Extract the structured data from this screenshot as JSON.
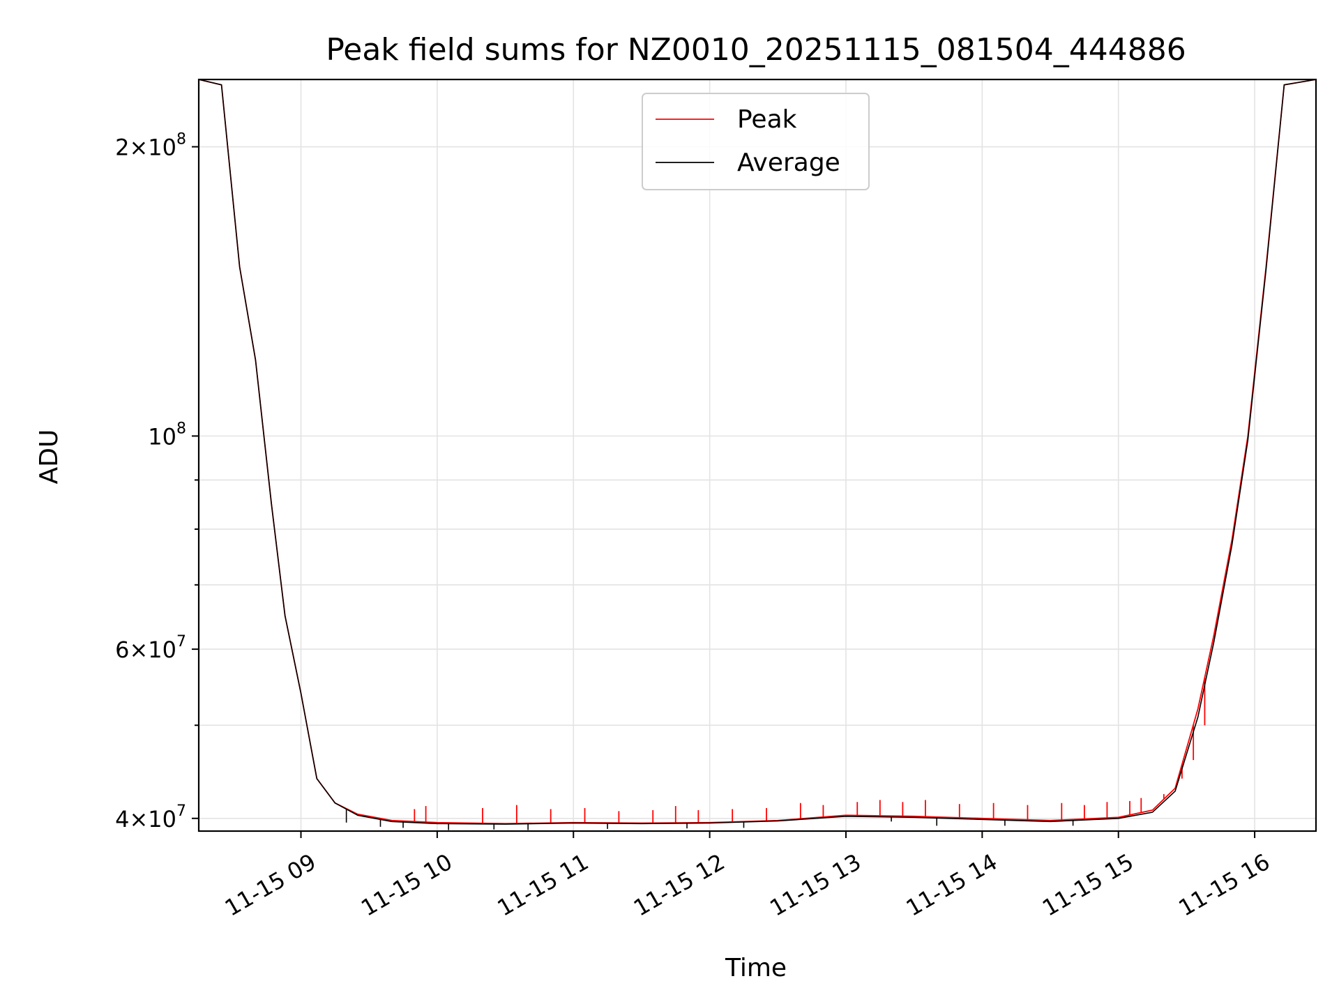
{
  "chart_data": {
    "type": "line",
    "title": "Peak field sums for NZ0010_20251115_081504_444886",
    "xlabel": "Time",
    "ylabel": "ADU",
    "yscale": "log",
    "grid": true,
    "legend_position": "upper center",
    "xlim": [
      "2025-11-15 08:15",
      "2025-11-15 16:27"
    ],
    "ylim": [
      38800000,
      235000000
    ],
    "x_ticks": [
      {
        "value": "2025-11-15 09:00",
        "label": "11-15 09"
      },
      {
        "value": "2025-11-15 10:00",
        "label": "11-15 10"
      },
      {
        "value": "2025-11-15 11:00",
        "label": "11-15 11"
      },
      {
        "value": "2025-11-15 12:00",
        "label": "11-15 12"
      },
      {
        "value": "2025-11-15 13:00",
        "label": "11-15 13"
      },
      {
        "value": "2025-11-15 14:00",
        "label": "11-15 14"
      },
      {
        "value": "2025-11-15 15:00",
        "label": "11-15 15"
      },
      {
        "value": "2025-11-15 16:00",
        "label": "11-15 16"
      }
    ],
    "y_ticks": [
      {
        "value": 200000000,
        "mantissa": "2",
        "exponent": "8"
      },
      {
        "value": 100000000,
        "mantissa": "",
        "exponent": "8"
      },
      {
        "value": 60000000,
        "mantissa": "6",
        "exponent": "7"
      },
      {
        "value": 40000000,
        "mantissa": "4",
        "exponent": "7"
      }
    ],
    "y_minor_ticks": [
      50000000,
      70000000,
      80000000,
      90000000
    ],
    "x": [
      "2025-11-15 08:15",
      "2025-11-15 08:25",
      "2025-11-15 08:33",
      "2025-11-15 08:40",
      "2025-11-15 08:47",
      "2025-11-15 08:53",
      "2025-11-15 09:00",
      "2025-11-15 09:07",
      "2025-11-15 09:15",
      "2025-11-15 09:25",
      "2025-11-15 09:40",
      "2025-11-15 10:00",
      "2025-11-15 10:30",
      "2025-11-15 11:00",
      "2025-11-15 11:30",
      "2025-11-15 12:00",
      "2025-11-15 12:30",
      "2025-11-15 13:00",
      "2025-11-15 13:30",
      "2025-11-15 14:00",
      "2025-11-15 14:30",
      "2025-11-15 15:00",
      "2025-11-15 15:15",
      "2025-11-15 15:25",
      "2025-11-15 15:35",
      "2025-11-15 15:42",
      "2025-11-15 15:50",
      "2025-11-15 15:57",
      "2025-11-15 16:05",
      "2025-11-15 16:13",
      "2025-11-15 16:27"
    ],
    "series": [
      {
        "name": "Peak",
        "color": "#ff0000",
        "values": [
          235000000,
          232000000,
          150000000,
          120000000,
          85000000,
          65000000,
          54000000,
          44000000,
          41500000,
          40400000,
          39800000,
          39600000,
          39500000,
          39600000,
          39550000,
          39600000,
          39800000,
          40300000,
          40200000,
          40000000,
          39800000,
          40100000,
          40800000,
          43000000,
          52000000,
          62000000,
          78000000,
          100000000,
          150000000,
          232000000,
          235000000
        ],
        "spikes": [
          [
            "2025-11-15 09:50",
            40900000
          ],
          [
            "2025-11-15 09:55",
            41200000
          ],
          [
            "2025-11-15 10:20",
            41000000
          ],
          [
            "2025-11-15 10:35",
            41300000
          ],
          [
            "2025-11-15 10:50",
            40900000
          ],
          [
            "2025-11-15 11:05",
            41000000
          ],
          [
            "2025-11-15 11:20",
            40700000
          ],
          [
            "2025-11-15 11:35",
            40800000
          ],
          [
            "2025-11-15 11:45",
            41200000
          ],
          [
            "2025-11-15 11:55",
            40800000
          ],
          [
            "2025-11-15 12:10",
            40900000
          ],
          [
            "2025-11-15 12:25",
            41000000
          ],
          [
            "2025-11-15 12:40",
            41500000
          ],
          [
            "2025-11-15 12:50",
            41300000
          ],
          [
            "2025-11-15 13:05",
            41600000
          ],
          [
            "2025-11-15 13:15",
            41800000
          ],
          [
            "2025-11-15 13:25",
            41600000
          ],
          [
            "2025-11-15 13:35",
            41800000
          ],
          [
            "2025-11-15 13:50",
            41400000
          ],
          [
            "2025-11-15 14:05",
            41500000
          ],
          [
            "2025-11-15 14:20",
            41300000
          ],
          [
            "2025-11-15 14:35",
            41500000
          ],
          [
            "2025-11-15 14:45",
            41300000
          ],
          [
            "2025-11-15 14:55",
            41600000
          ],
          [
            "2025-11-15 15:05",
            41700000
          ],
          [
            "2025-11-15 15:10",
            42000000
          ],
          [
            "2025-11-15 15:20",
            42400000
          ],
          [
            "2025-11-15 15:28",
            44000000
          ],
          [
            "2025-11-15 15:33",
            46000000
          ],
          [
            "2025-11-15 15:38",
            50000000
          ]
        ]
      },
      {
        "name": "Average",
        "color": "#000000",
        "values": [
          235000000,
          232000000,
          150000000,
          120000000,
          85000000,
          65000000,
          54000000,
          44000000,
          41500000,
          40300000,
          39700000,
          39500000,
          39450000,
          39550000,
          39500000,
          39550000,
          39750000,
          40200000,
          40100000,
          39900000,
          39700000,
          40000000,
          40600000,
          42700000,
          51000000,
          61000000,
          77000000,
          99000000,
          149000000,
          232000000,
          235000000
        ],
        "dips": [
          [
            "2025-11-15 09:20",
            39600000
          ],
          [
            "2025-11-15 09:35",
            39200000
          ],
          [
            "2025-11-15 09:45",
            39100000
          ],
          [
            "2025-11-15 10:05",
            38900000
          ],
          [
            "2025-11-15 10:25",
            38950000
          ],
          [
            "2025-11-15 10:40",
            38900000
          ],
          [
            "2025-11-15 11:15",
            39000000
          ],
          [
            "2025-11-15 11:50",
            39050000
          ],
          [
            "2025-11-15 12:15",
            39100000
          ],
          [
            "2025-11-15 13:20",
            39700000
          ],
          [
            "2025-11-15 13:40",
            39300000
          ],
          [
            "2025-11-15 14:10",
            39300000
          ],
          [
            "2025-11-15 14:40",
            39300000
          ]
        ]
      }
    ]
  }
}
